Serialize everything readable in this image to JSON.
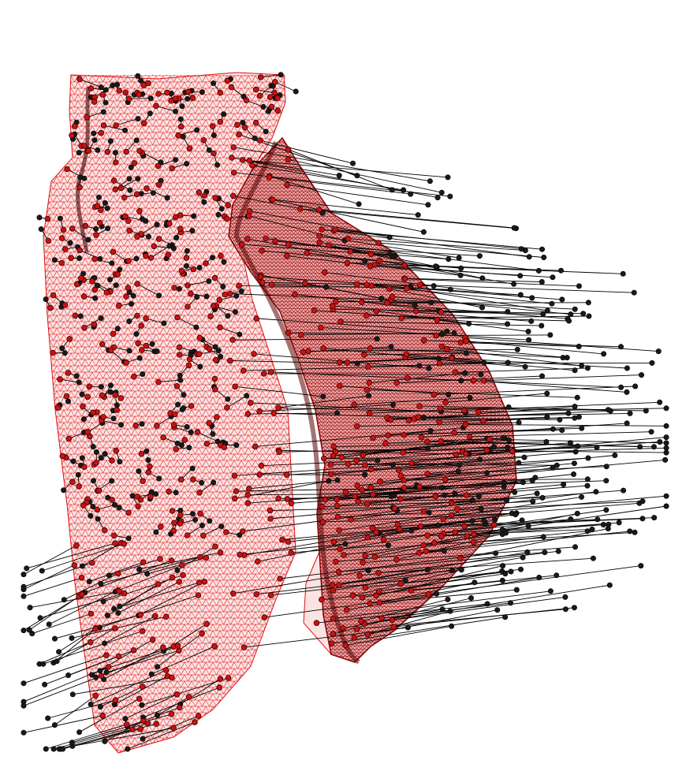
{
  "figure": {
    "description_icon": "mesh-registration-icon",
    "colors": {
      "background": "#ffffff",
      "mesh_edge": "#e01010",
      "mesh_fill": "#fbe3e3",
      "dense_mesh": "#8a0000",
      "source_point": "#cc1111",
      "target_point": "#1a1a1a",
      "correspondence_line": "#000000"
    }
  }
}
